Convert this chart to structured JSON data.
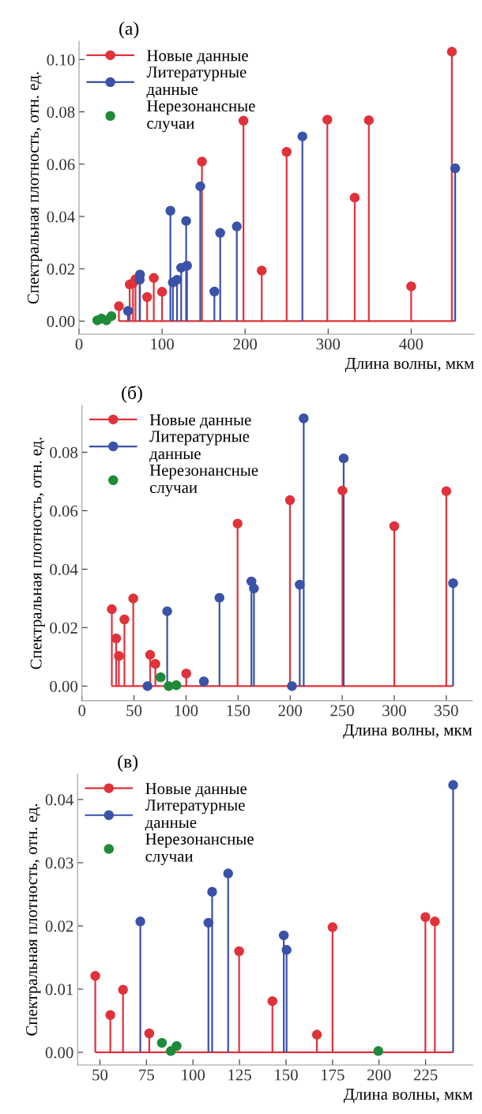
{
  "chart_data": [
    {
      "type": "lollipop",
      "title": "(а)",
      "xlabel": "Длина волны, мкм",
      "ylabel": "Спектральная плотность, отн. ед.",
      "xlim": [
        0,
        476
      ],
      "xticks": [
        0,
        100,
        200,
        300,
        400
      ],
      "ylim": [
        -0.005,
        0.107
      ],
      "yticks": [
        {
          "value": 0,
          "label": "0.00"
        },
        {
          "value": 0.02,
          "label": "0.02"
        },
        {
          "value": 0.04,
          "label": "0.04"
        },
        {
          "value": 0.06,
          "label": "0.06"
        },
        {
          "value": 0.08,
          "label": "0.08"
        },
        {
          "value": 0.1,
          "label": "0.10"
        }
      ],
      "legend": "top left",
      "marker": "circle",
      "grid": false,
      "ref_lines": [
        {
          "axis": "y",
          "value": 0,
          "color": "#e0323a"
        }
      ],
      "series": [
        {
          "name": "Новые данные",
          "color": "#e0323a",
          "x": [
            48,
            61,
            65,
            68,
            82,
            90,
            100,
            148,
            198,
            220,
            250,
            299,
            332,
            349,
            400,
            449
          ],
          "values": [
            0.0057,
            0.014,
            0.0145,
            0.016,
            0.0092,
            0.0165,
            0.0112,
            0.061,
            0.0766,
            0.0193,
            0.0647,
            0.077,
            0.0472,
            0.0768,
            0.0133,
            0.103
          ]
        },
        {
          "name": "Литературные данные",
          "color": "#3a52a8",
          "x": [
            59,
            73,
            73.4,
            110,
            113,
            118,
            123,
            129,
            130,
            146,
            163,
            170,
            190,
            269,
            453
          ],
          "values": [
            0.0039,
            0.0158,
            0.0178,
            0.0422,
            0.0148,
            0.0158,
            0.0204,
            0.0383,
            0.0212,
            0.0515,
            0.0113,
            0.0337,
            0.0362,
            0.0706,
            0.0584
          ]
        },
        {
          "name": "Нерезонансные случаи",
          "type": "scatter",
          "color": "#1e8a3a",
          "x": [
            22,
            27,
            33,
            39
          ],
          "values": [
            0.0003,
            0.001,
            0.0003,
            0.0019
          ]
        }
      ]
    },
    {
      "type": "lollipop",
      "title": "(б)",
      "xlabel": "Длина волны, мкм",
      "ylabel": "Спектральная плотность, отн. ед.",
      "xlim": [
        0,
        375
      ],
      "xticks": [
        0,
        50,
        100,
        150,
        200,
        250,
        300,
        350
      ],
      "ylim": [
        -0.005,
        0.096
      ],
      "yticks": [
        {
          "value": 0,
          "label": "0.00"
        },
        {
          "value": 0.02,
          "label": "0.02"
        },
        {
          "value": 0.04,
          "label": "0.04"
        },
        {
          "value": 0.06,
          "label": "0.06"
        },
        {
          "value": 0.08,
          "label": "0.08"
        }
      ],
      "legend": "top left",
      "marker": "circle",
      "grid": false,
      "ref_lines": [
        {
          "axis": "y",
          "value": 0,
          "color": "#e0323a"
        }
      ],
      "series": [
        {
          "name": "Новые данные",
          "color": "#e0323a",
          "x": [
            28.7,
            32.9,
            35.5,
            40.8,
            49.3,
            65.5,
            70.5,
            100.2,
            149.5,
            199.8,
            250.2,
            300,
            350
          ],
          "values": [
            0.0263,
            0.0163,
            0.0103,
            0.0228,
            0.03,
            0.0107,
            0.0076,
            0.0043,
            0.0556,
            0.0636,
            0.0669,
            0.0547,
            0.0667
          ]
        },
        {
          "name": "Литературные данные",
          "color": "#3a52a8",
          "x": [
            63,
            81.9,
            117.1,
            132.1,
            162.8,
            165.2,
            201.7,
            209.2,
            213,
            251.4,
            356.5
          ],
          "values": [
            0,
            0.0256,
            0.0016,
            0.0302,
            0.0358,
            0.0334,
            0,
            0.0347,
            0.0916,
            0.0779,
            0.0352
          ]
        },
        {
          "name": "Нерезонансные случаи",
          "type": "scatter",
          "color": "#1e8a3a",
          "x": [
            75.6,
            83.3,
            90.6
          ],
          "values": [
            0.003,
            0,
            0.0003
          ]
        }
      ]
    },
    {
      "type": "lollipop",
      "title": "(в)",
      "xlabel": "Длина волны, мкм",
      "ylabel": "Спектральная плотность, отн. ед.",
      "xlim": [
        38,
        250.4
      ],
      "xticks": [
        50,
        75,
        100,
        125,
        150,
        175,
        200,
        225
      ],
      "ylim": [
        -0.002,
        0.044
      ],
      "yticks": [
        {
          "value": 0,
          "label": "0.00"
        },
        {
          "value": 0.01,
          "label": "0.01"
        },
        {
          "value": 0.02,
          "label": "0.02"
        },
        {
          "value": 0.03,
          "label": "0.03"
        },
        {
          "value": 0.04,
          "label": "0.04"
        }
      ],
      "legend": "top left",
      "marker": "circle",
      "grid": false,
      "ref_lines": [
        {
          "axis": "y",
          "value": 0,
          "color": "#e0323a"
        }
      ],
      "series": [
        {
          "name": "Новые данные",
          "color": "#e0323a",
          "x": [
            47.5,
            55.6,
            62.4,
            76.5,
            124.8,
            142.7,
            166.6,
            175,
            224.9,
            230
          ],
          "values": [
            0.0121,
            0.0059,
            0.0099,
            0.003,
            0.016,
            0.0081,
            0.0028,
            0.0198,
            0.0214,
            0.0207
          ]
        },
        {
          "name": "Литературные данные",
          "color": "#3a52a8",
          "x": [
            71.7,
            108.3,
            110.3,
            118.9,
            148.8,
            150.3,
            239.8
          ],
          "values": [
            0.0207,
            0.0205,
            0.0254,
            0.0283,
            0.0185,
            0.0162,
            0.0423
          ]
        },
        {
          "name": "Нерезонансные случаи",
          "type": "scatter",
          "color": "#1e8a3a",
          "x": [
            83.3,
            88.1,
            91.2,
            199.6
          ],
          "values": [
            0.0015,
            0.0002,
            0.001,
            0.0002
          ]
        }
      ]
    }
  ]
}
